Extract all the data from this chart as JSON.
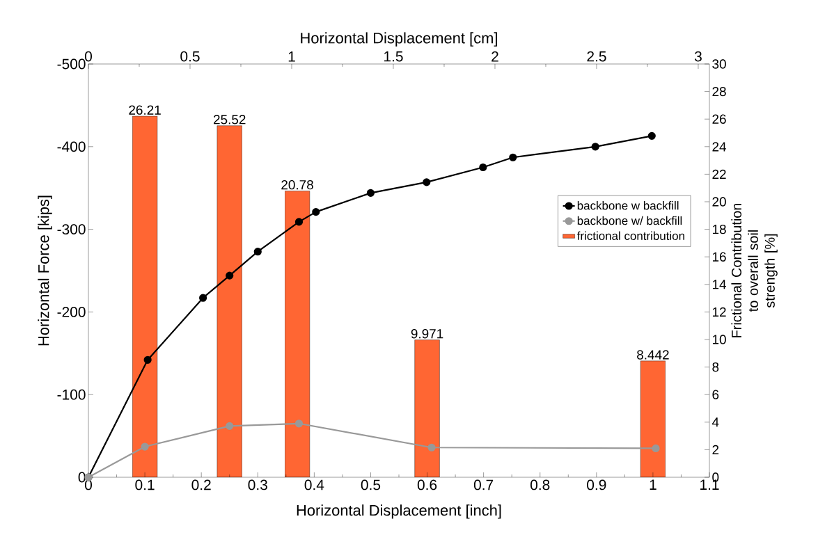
{
  "chart_data": {
    "type": "line",
    "xlabel": "Horizontal Displacement [inch]",
    "x2label": "Horizontal Displacement [cm]",
    "ylabel": "Horizontal Force [kips]",
    "y2label": "Frictional Contribution to overall soil strength [%]",
    "xlim": [
      0,
      1.1
    ],
    "xticks": [
      0,
      0.1,
      0.2,
      0.3,
      0.4,
      0.5,
      0.6,
      0.7,
      0.8,
      0.9,
      1,
      1.1
    ],
    "x2lim": [
      0,
      3.055
    ],
    "x2ticks": [
      0,
      0.5,
      1,
      1.5,
      2,
      2.5,
      3
    ],
    "ylim": [
      0,
      -500
    ],
    "yticks": [
      0,
      -100,
      -200,
      -300,
      -400,
      -500
    ],
    "y2lim": [
      0,
      30
    ],
    "y2ticks": [
      0,
      2,
      4,
      6,
      8,
      10,
      12,
      14,
      16,
      18,
      20,
      22,
      24,
      26,
      28,
      30
    ],
    "marker": "circle",
    "line_style": "solid",
    "legend": "right",
    "series": [
      {
        "name": "backbone w backfill",
        "color": "#000000",
        "x": [
          0,
          0.105,
          0.203,
          0.25,
          0.3,
          0.373,
          0.403,
          0.5,
          0.599,
          0.699,
          0.752,
          0.898,
          0.998
        ],
        "values": [
          0,
          -142,
          -217,
          -244,
          -273,
          -309,
          -321,
          -344,
          -357,
          -375,
          -387,
          -400,
          -413
        ]
      },
      {
        "name": "backbone w/ backfill",
        "color": "#999999",
        "x": [
          0,
          0.1,
          0.25,
          0.373,
          0.608,
          1.005
        ],
        "values": [
          0,
          -37,
          -62,
          -65,
          -36,
          -35
        ]
      },
      {
        "name": "frictional contribution",
        "type": "bar",
        "axis": "y2",
        "data_labels": true,
        "color": "#ff6633",
        "x": [
          0.1,
          0.25,
          0.37,
          0.6,
          1.0
        ],
        "values": [
          26.21,
          25.52,
          20.78,
          9.971,
          8.442
        ]
      }
    ]
  }
}
